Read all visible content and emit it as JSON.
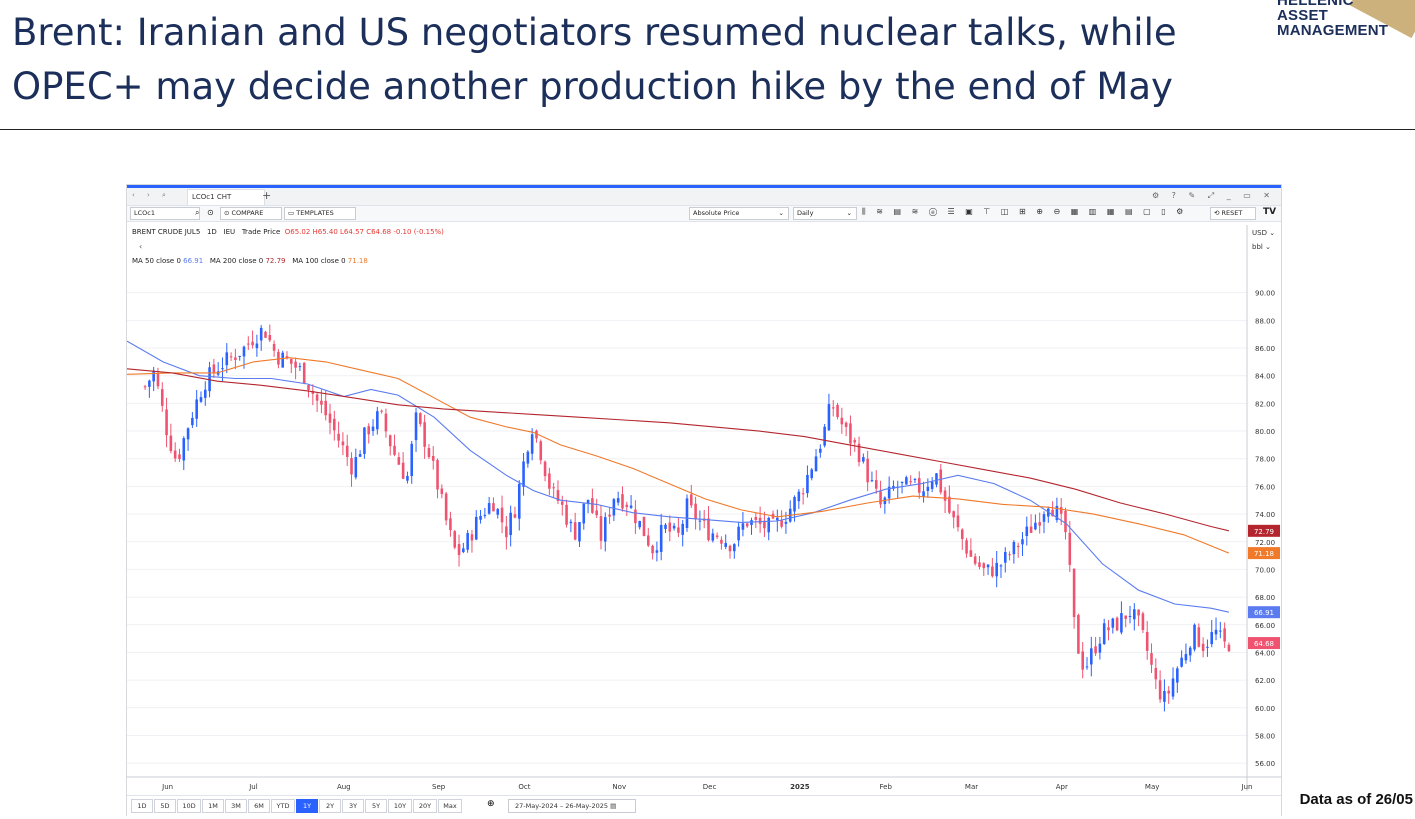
{
  "title": {
    "line1": "Brent: Iranian and US negotiators resumed nuclear talks, while",
    "line2": "OPEC+ may decide another production hike by the end of May"
  },
  "logo": {
    "line1": "HELLENIC",
    "line2": "ASSET",
    "line3": "MANAGEMENT"
  },
  "footer": "Data as of 26/05",
  "window": {
    "tab_label": "LCOc1 CHT",
    "symbol_input": "LCOc1",
    "compare_label": "COMPARE",
    "templates_label": "TEMPLATES",
    "price_mode": "Absolute Price",
    "interval": "Daily",
    "reset_label": "RESET",
    "currency": "USD",
    "unit": "bbl"
  },
  "legend": {
    "instrument": "BRENT CRUDE JUL5",
    "interval": "1D",
    "exchange": "IEU",
    "field": "Trade Price",
    "ohlc": "O65.02 H65.40 L64.57 C64.68 -0.10 (-0.15%)",
    "ma50_label": "MA 50 close 0",
    "ma50_value": "66.91",
    "ma200_label": "MA 200 close 0",
    "ma200_value": "72.79",
    "ma100_label": "MA 100 close 0",
    "ma100_value": "71.18"
  },
  "range_buttons": [
    "1D",
    "5D",
    "10D",
    "1M",
    "3M",
    "6M",
    "YTD",
    "1Y",
    "2Y",
    "3Y",
    "5Y",
    "10Y",
    "20Y",
    "Max"
  ],
  "active_range": "1Y",
  "date_range": "27-May-2024 – 26-May-2025",
  "colors": {
    "up": "#2962ff",
    "down": "#ef5370",
    "ma50": "#5b7cf0",
    "ma100": "#f0792a",
    "ma200": "#b3262e"
  },
  "chart_data": {
    "type": "candlestick",
    "y_unit": "USD/bbl",
    "ylim": [
      55,
      92
    ],
    "y_ticks": [
      "56.00",
      "58.00",
      "60.00",
      "62.00",
      "64.00",
      "66.00",
      "68.00",
      "70.00",
      "72.00",
      "74.00",
      "76.00",
      "78.00",
      "80.00",
      "82.00",
      "84.00",
      "86.00",
      "88.00",
      "90.00"
    ],
    "x_ticks": [
      "Jun",
      "Jul",
      "Aug",
      "Sep",
      "Oct",
      "Nov",
      "Dec",
      "2025",
      "Feb",
      "Mar",
      "Apr",
      "May",
      "Jun"
    ],
    "x_tick_months": [
      0.25,
      1.2,
      2.2,
      3.25,
      4.2,
      5.25,
      6.25,
      7.25,
      8.2,
      9.15,
      10.15,
      11.15,
      12.2
    ],
    "x_range_months": [
      -0.2,
      12.2
    ],
    "last_price_labels": [
      {
        "name": "MA 200",
        "value": 72.79,
        "text": "72.79"
      },
      {
        "name": "MA 100",
        "value": 71.18,
        "text": "71.18"
      },
      {
        "name": "MA 50",
        "value": 66.91,
        "text": "66.91"
      },
      {
        "name": "Close",
        "value": 64.68,
        "text": "64.68"
      }
    ],
    "close_path": [
      [
        0.0,
        83.2
      ],
      [
        0.1,
        84.3
      ],
      [
        0.25,
        79.8
      ],
      [
        0.35,
        77.8
      ],
      [
        0.5,
        80.9
      ],
      [
        0.65,
        83.5
      ],
      [
        0.8,
        84.6
      ],
      [
        0.95,
        85.3
      ],
      [
        1.1,
        86.0
      ],
      [
        1.2,
        86.8
      ],
      [
        1.32,
        87.4
      ],
      [
        1.45,
        85.5
      ],
      [
        1.6,
        85.0
      ],
      [
        1.75,
        84.2
      ],
      [
        1.9,
        82.2
      ],
      [
        2.0,
        81.2
      ],
      [
        2.15,
        79.3
      ],
      [
        2.3,
        77.3
      ],
      [
        2.45,
        80.0
      ],
      [
        2.6,
        81.2
      ],
      [
        2.75,
        78.5
      ],
      [
        2.9,
        76.5
      ],
      [
        3.0,
        80.8
      ],
      [
        3.12,
        79.0
      ],
      [
        3.25,
        75.8
      ],
      [
        3.35,
        73.0
      ],
      [
        3.45,
        71.0
      ],
      [
        3.55,
        71.8
      ],
      [
        3.7,
        73.8
      ],
      [
        3.85,
        75.0
      ],
      [
        4.0,
        72.8
      ],
      [
        4.1,
        74.5
      ],
      [
        4.2,
        78.0
      ],
      [
        4.28,
        80.5
      ],
      [
        4.38,
        78.5
      ],
      [
        4.5,
        75.5
      ],
      [
        4.6,
        74.8
      ],
      [
        4.75,
        72.5
      ],
      [
        4.9,
        75.2
      ],
      [
        5.05,
        72.3
      ],
      [
        5.2,
        75.5
      ],
      [
        5.35,
        74.8
      ],
      [
        5.5,
        73.0
      ],
      [
        5.62,
        71.5
      ],
      [
        5.75,
        73.0
      ],
      [
        5.9,
        72.3
      ],
      [
        6.0,
        74.5
      ],
      [
        6.1,
        73.8
      ],
      [
        6.22,
        72.8
      ],
      [
        6.35,
        72.5
      ],
      [
        6.5,
        71.8
      ],
      [
        6.65,
        73.5
      ],
      [
        6.8,
        73.2
      ],
      [
        6.95,
        73.0
      ],
      [
        7.1,
        74.0
      ],
      [
        7.25,
        75.5
      ],
      [
        7.35,
        77.0
      ],
      [
        7.5,
        79.5
      ],
      [
        7.6,
        82.0
      ],
      [
        7.75,
        80.0
      ],
      [
        7.9,
        78.5
      ],
      [
        8.0,
        76.8
      ],
      [
        8.15,
        74.5
      ],
      [
        8.3,
        76.0
      ],
      [
        8.45,
        76.0
      ],
      [
        8.6,
        75.8
      ],
      [
        8.75,
        77.0
      ],
      [
        8.9,
        74.2
      ],
      [
        9.0,
        72.8
      ],
      [
        9.15,
        70.8
      ],
      [
        9.3,
        69.8
      ],
      [
        9.45,
        70.2
      ],
      [
        9.6,
        71.3
      ],
      [
        9.75,
        72.5
      ],
      [
        9.9,
        73.8
      ],
      [
        10.0,
        75.0
      ],
      [
        10.1,
        74.0
      ],
      [
        10.2,
        72.5
      ],
      [
        10.3,
        65.0
      ],
      [
        10.4,
        62.8
      ],
      [
        10.5,
        64.2
      ],
      [
        10.6,
        65.5
      ],
      [
        10.75,
        66.0
      ],
      [
        10.9,
        67.0
      ],
      [
        11.0,
        66.0
      ],
      [
        11.1,
        64.0
      ],
      [
        11.2,
        61.5
      ],
      [
        11.3,
        60.5
      ],
      [
        11.4,
        62.5
      ],
      [
        11.5,
        63.8
      ],
      [
        11.6,
        65.5
      ],
      [
        11.72,
        64.5
      ],
      [
        11.85,
        65.5
      ],
      [
        11.95,
        64.5
      ],
      [
        12.0,
        64.68
      ]
    ],
    "series": [
      {
        "name": "MA 50 close 0",
        "key": "ma50",
        "values": [
          [
            -0.2,
            86.5
          ],
          [
            0.2,
            85.0
          ],
          [
            0.6,
            84.0
          ],
          [
            1.0,
            83.8
          ],
          [
            1.4,
            83.8
          ],
          [
            1.8,
            83.4
          ],
          [
            2.2,
            82.5
          ],
          [
            2.5,
            83.0
          ],
          [
            2.8,
            82.6
          ],
          [
            3.2,
            81.0
          ],
          [
            3.6,
            78.6
          ],
          [
            4.0,
            76.8
          ],
          [
            4.3,
            75.7
          ],
          [
            4.6,
            75.0
          ],
          [
            5.0,
            74.7
          ],
          [
            5.4,
            74.1
          ],
          [
            5.8,
            73.8
          ],
          [
            6.2,
            73.6
          ],
          [
            6.6,
            73.4
          ],
          [
            7.0,
            73.5
          ],
          [
            7.4,
            74.1
          ],
          [
            7.8,
            75.0
          ],
          [
            8.2,
            75.8
          ],
          [
            8.6,
            76.2
          ],
          [
            9.0,
            76.8
          ],
          [
            9.4,
            76.2
          ],
          [
            9.8,
            75.0
          ],
          [
            10.2,
            73.3
          ],
          [
            10.6,
            70.4
          ],
          [
            11.0,
            68.5
          ],
          [
            11.4,
            67.5
          ],
          [
            11.8,
            67.2
          ],
          [
            12.0,
            66.91
          ]
        ]
      },
      {
        "name": "MA 100 close 0",
        "key": "ma100",
        "values": [
          [
            -0.2,
            84.1
          ],
          [
            0.3,
            84.2
          ],
          [
            0.8,
            84.2
          ],
          [
            1.2,
            85.0
          ],
          [
            1.6,
            85.3
          ],
          [
            2.0,
            85.0
          ],
          [
            2.4,
            84.4
          ],
          [
            2.8,
            83.8
          ],
          [
            3.2,
            82.4
          ],
          [
            3.6,
            81.0
          ],
          [
            4.0,
            80.3
          ],
          [
            4.3,
            79.9
          ],
          [
            4.6,
            79.0
          ],
          [
            5.0,
            78.2
          ],
          [
            5.4,
            77.3
          ],
          [
            5.8,
            76.2
          ],
          [
            6.2,
            75.1
          ],
          [
            6.6,
            74.3
          ],
          [
            7.0,
            73.8
          ],
          [
            7.5,
            74.2
          ],
          [
            8.0,
            74.8
          ],
          [
            8.5,
            75.3
          ],
          [
            9.0,
            75.1
          ],
          [
            9.5,
            74.7
          ],
          [
            10.0,
            74.5
          ],
          [
            10.5,
            74.0
          ],
          [
            11.0,
            73.3
          ],
          [
            11.5,
            72.5
          ],
          [
            12.0,
            71.18
          ]
        ]
      },
      {
        "name": "MA 200 close 0",
        "key": "ma200",
        "values": [
          [
            -0.2,
            84.5
          ],
          [
            0.3,
            84.2
          ],
          [
            0.8,
            83.6
          ],
          [
            1.3,
            83.3
          ],
          [
            1.8,
            82.9
          ],
          [
            2.3,
            82.4
          ],
          [
            2.8,
            81.9
          ],
          [
            3.3,
            81.6
          ],
          [
            3.8,
            81.4
          ],
          [
            4.3,
            81.2
          ],
          [
            4.8,
            81.0
          ],
          [
            5.3,
            80.8
          ],
          [
            5.8,
            80.6
          ],
          [
            6.3,
            80.3
          ],
          [
            6.8,
            80.0
          ],
          [
            7.3,
            79.6
          ],
          [
            7.8,
            79.0
          ],
          [
            8.3,
            78.4
          ],
          [
            8.8,
            77.8
          ],
          [
            9.3,
            77.2
          ],
          [
            9.8,
            76.6
          ],
          [
            10.3,
            75.8
          ],
          [
            10.8,
            74.8
          ],
          [
            11.3,
            74.0
          ],
          [
            11.8,
            73.1
          ],
          [
            12.0,
            72.79
          ]
        ]
      }
    ]
  }
}
